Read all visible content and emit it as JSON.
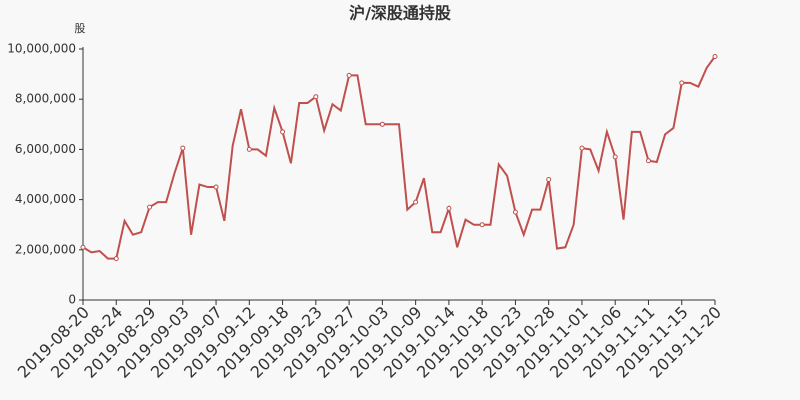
{
  "chart_data": {
    "type": "line",
    "title": "沪/深股通持股",
    "y_label": "股",
    "categories": [
      "2019-08-20",
      null,
      null,
      null,
      "2019-08-24",
      null,
      null,
      null,
      "2019-08-29",
      null,
      null,
      null,
      "2019-09-03",
      null,
      null,
      null,
      "2019-09-07",
      null,
      null,
      null,
      "2019-09-12",
      null,
      null,
      null,
      "2019-09-18",
      null,
      null,
      null,
      "2019-09-23",
      null,
      null,
      null,
      "2019-09-27",
      null,
      null,
      null,
      "2019-10-03",
      null,
      null,
      null,
      "2019-10-09",
      null,
      null,
      null,
      "2019-10-14",
      null,
      null,
      null,
      "2019-10-18",
      null,
      null,
      null,
      "2019-10-23",
      null,
      null,
      null,
      "2019-10-28",
      null,
      null,
      null,
      "2019-11-01",
      null,
      null,
      null,
      "2019-11-06",
      null,
      null,
      null,
      "2019-11-11",
      null,
      null,
      null,
      "2019-11-15",
      null,
      null,
      null,
      "2019-11-20"
    ],
    "series": [
      {
        "color": "#c0504d",
        "values": [
          2100000,
          1900000,
          1950000,
          1650000,
          1650000,
          3150000,
          2600000,
          2700000,
          3700000,
          3900000,
          3900000,
          5050000,
          6050000,
          2600000,
          4600000,
          4500000,
          4500000,
          3150000,
          6150000,
          7600000,
          6000000,
          6000000,
          5750000,
          7650000,
          6700000,
          5450000,
          7850000,
          7850000,
          8100000,
          6750000,
          7800000,
          7550000,
          8950000,
          8950000,
          7000000,
          7000000,
          7000000,
          7000000,
          7000000,
          3600000,
          3900000,
          4850000,
          2700000,
          2700000,
          3650000,
          2100000,
          3200000,
          3000000,
          3000000,
          3000000,
          5400000,
          4950000,
          3500000,
          2600000,
          3600000,
          3600000,
          4800000,
          2050000,
          2100000,
          3000000,
          6050000,
          6000000,
          5150000,
          6700000,
          5700000,
          3200000,
          6700000,
          6700000,
          5550000,
          5500000,
          6600000,
          6850000,
          8650000,
          8650000,
          8500000,
          9250000,
          9700000
        ]
      }
    ],
    "ylim": [
      0,
      10000000
    ],
    "yticks": [
      0,
      {
        "value": 2000000,
        "label": "2,000,000"
      },
      {
        "value": 4000000,
        "label": "4,000,000"
      },
      {
        "value": 6000000,
        "label": "6,000,000"
      },
      {
        "value": 8000000,
        "label": "8,000,000"
      },
      {
        "value": 10000000,
        "label": "10,000,000"
      }
    ]
  }
}
